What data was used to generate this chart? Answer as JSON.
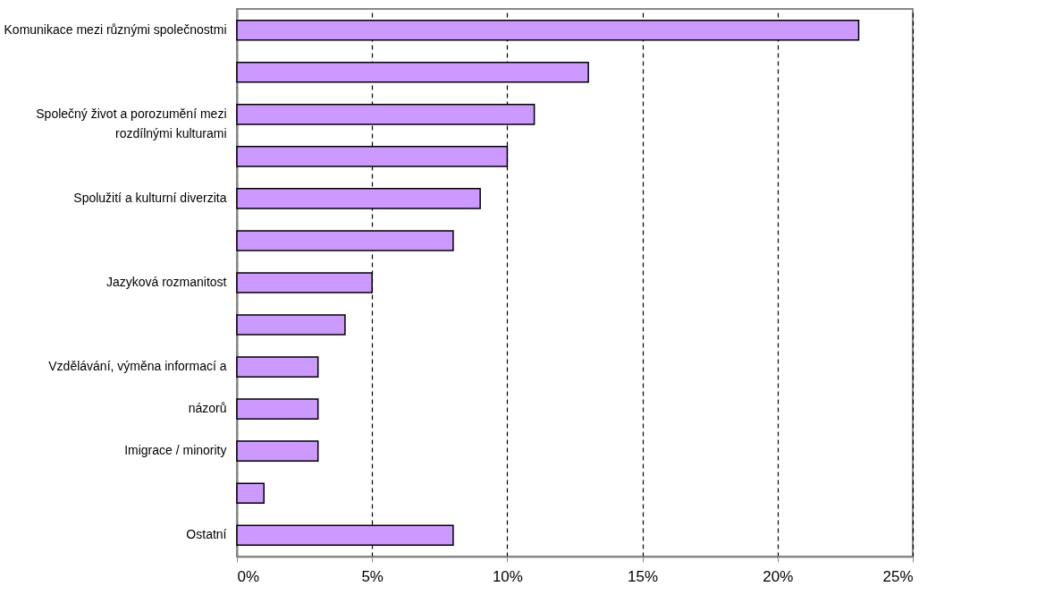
{
  "chart_data": {
    "type": "bar",
    "orientation": "horizontal",
    "categories": [
      "Komunikace mezi různými společnostmi",
      null,
      "Společný život a porozumění mezi\nrozdílnými kulturami",
      null,
      "Spolužití a kulturní diverzita",
      null,
      "Jazyková rozmanitost",
      null,
      "Vzdělávání, výměna informací a",
      "názorů",
      "Imigrace / minority",
      null,
      "Ostatní"
    ],
    "values": [
      23,
      13,
      11,
      10,
      9,
      8,
      5,
      4,
      3,
      3,
      3,
      1,
      8
    ],
    "color": "#cc99ff",
    "xlim": [
      0,
      25
    ],
    "xticks": [
      {
        "value": 0,
        "label": "0%"
      },
      {
        "value": 5,
        "label": "5%"
      },
      {
        "value": 10,
        "label": "10%"
      },
      {
        "value": 15,
        "label": "15%"
      },
      {
        "value": 20,
        "label": "20%"
      },
      {
        "value": 25,
        "label": "25%"
      }
    ],
    "grid": "x"
  }
}
